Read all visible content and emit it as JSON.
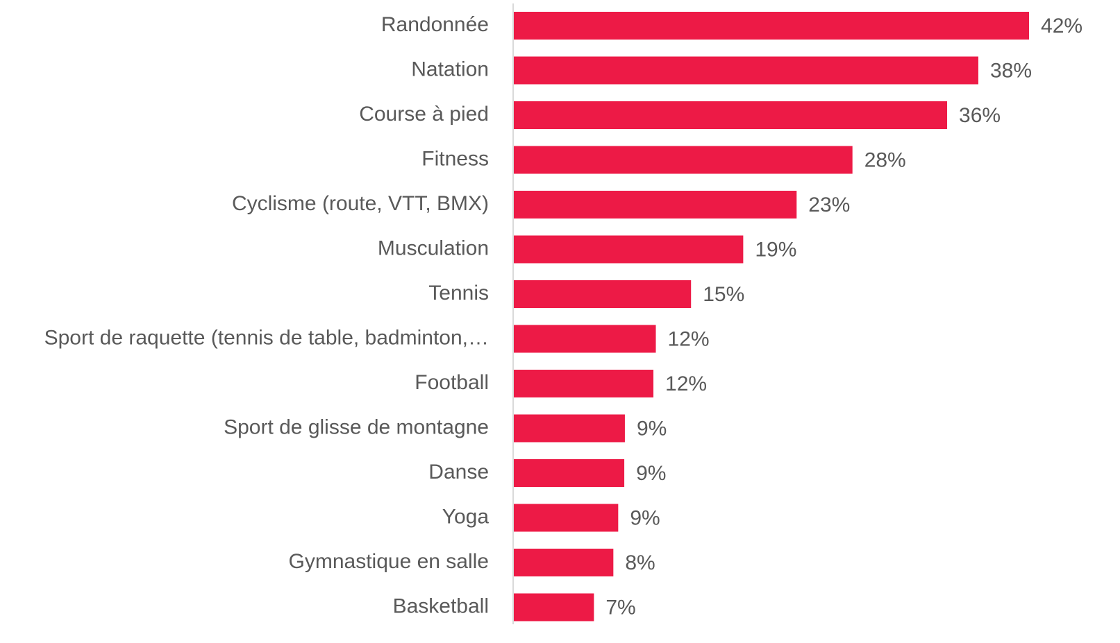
{
  "chart_data": {
    "type": "hbar",
    "categories": [
      "Randonnée",
      "Natation",
      "Course à pied",
      "Fitness",
      "Cyclisme (route, VTT, BMX)",
      "Musculation",
      "Tennis",
      "Sport de raquette (tennis de table, badminton,…",
      "Football",
      "Sport de glisse de montagne",
      "Danse",
      "Yoga",
      "Gymnastique en salle",
      "Basketball"
    ],
    "values": [
      42.45,
      38.27,
      35.7,
      27.9,
      23.3,
      18.9,
      14.6,
      11.7,
      11.5,
      9.15,
      9.1,
      8.6,
      8.2,
      6.6
    ],
    "value_labels": [
      "42%",
      "38%",
      "36%",
      "28%",
      "23%",
      "19%",
      "15%",
      "12%",
      "12%",
      "9%",
      "9%",
      "9%",
      "8%",
      "7%"
    ],
    "color": "#ed1a46"
  }
}
